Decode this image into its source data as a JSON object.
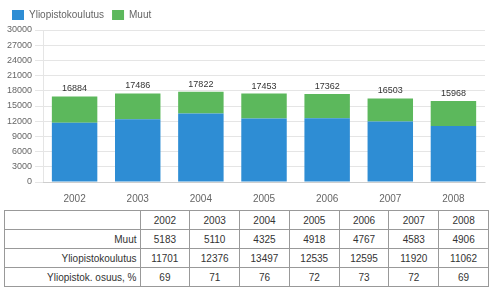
{
  "chart_data": {
    "type": "bar",
    "stacked": true,
    "categories": [
      "2002",
      "2003",
      "2004",
      "2005",
      "2006",
      "2007",
      "2008"
    ],
    "series": [
      {
        "name": "Yliopistokoulutus",
        "color": "#2e8dd4",
        "values": [
          11701,
          12376,
          13497,
          12535,
          12595,
          11920,
          11062
        ]
      },
      {
        "name": "Muut",
        "color": "#5cb85c",
        "values": [
          5183,
          5110,
          4325,
          4918,
          4767,
          4583,
          4906
        ]
      }
    ],
    "totals": [
      16884,
      17486,
      17822,
      17453,
      17362,
      16503,
      15968
    ],
    "ylim": [
      0,
      30000
    ],
    "yticks": [
      0,
      3000,
      6000,
      9000,
      12000,
      15000,
      18000,
      21000,
      24000,
      27000,
      30000
    ],
    "grid": true,
    "legend": "upper left",
    "table": {
      "rows": [
        {
          "label": "Muut",
          "values": [
            5183,
            5110,
            4325,
            4918,
            4767,
            4583,
            4906
          ]
        },
        {
          "label": "Yliopistokoulutus",
          "values": [
            11701,
            12376,
            13497,
            12535,
            12595,
            11920,
            11062
          ]
        },
        {
          "label": "Yliopistok. osuus, %",
          "values": [
            69,
            71,
            76,
            72,
            73,
            72,
            69
          ]
        }
      ]
    }
  }
}
